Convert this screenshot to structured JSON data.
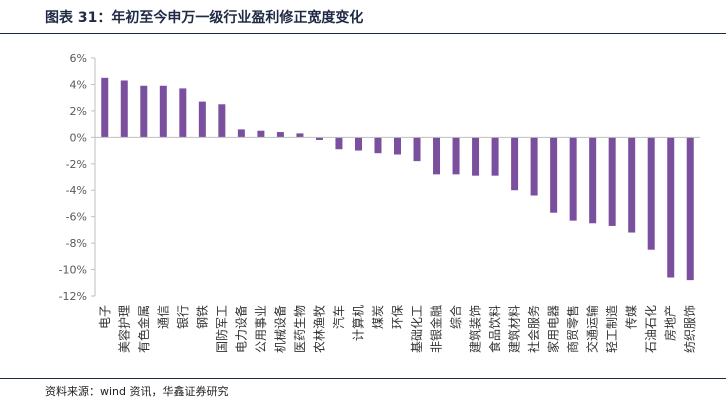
{
  "header": {
    "title": "图表 31：年初至今申万一级行业盈利修正宽度变化"
  },
  "footer": {
    "source": "资料来源：wind 资讯，华鑫证券研究"
  },
  "chart_data": {
    "type": "bar",
    "title": "年初至今申万一级行业盈利修正宽度变化",
    "xlabel": "",
    "ylabel": "",
    "ylim": [
      -12,
      6
    ],
    "yticks": [
      6,
      4,
      2,
      0,
      -2,
      -4,
      -6,
      -8,
      -10,
      -12
    ],
    "ytick_format": "percent",
    "grid": false,
    "colors": {
      "bar": "#7a4f9e",
      "axis": "#bfbfbf",
      "text": "#595959"
    },
    "categories": [
      "电子",
      "美容护理",
      "有色金属",
      "通信",
      "银行",
      "钢铁",
      "国防军工",
      "电力设备",
      "公用事业",
      "机械设备",
      "医药生物",
      "农林渔牧",
      "汽车",
      "计算机",
      "煤炭",
      "环保",
      "基础化工",
      "非银金融",
      "综合",
      "建筑装饰",
      "食品饮料",
      "建筑材料",
      "社会服务",
      "家用电器",
      "商贸零售",
      "交通运输",
      "轻工制造",
      "传媒",
      "石油石化",
      "房地产",
      "纺织服饰"
    ],
    "values": [
      4.5,
      4.3,
      3.9,
      3.9,
      3.7,
      2.7,
      2.5,
      0.6,
      0.5,
      0.4,
      0.3,
      -0.2,
      -0.9,
      -1.0,
      -1.2,
      -1.3,
      -1.8,
      -2.8,
      -2.8,
      -2.9,
      -2.9,
      -4.0,
      -4.4,
      -5.7,
      -6.3,
      -6.5,
      -6.7,
      -7.2,
      -8.5,
      -10.6,
      -10.8
    ]
  }
}
